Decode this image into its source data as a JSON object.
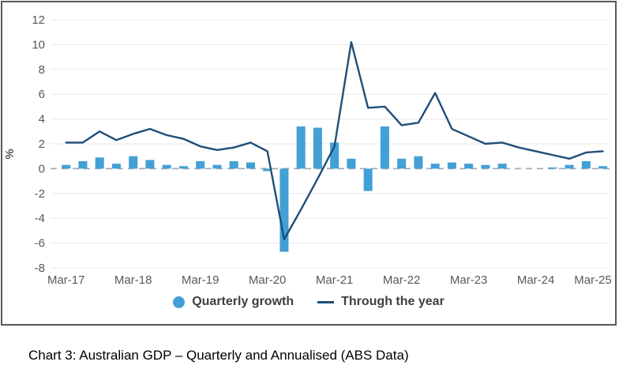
{
  "figure": {
    "caption": "Chart 3: Australian GDP – Quarterly and Annualised (ABS Data)"
  },
  "legend": {
    "items": [
      {
        "label": "Quarterly growth",
        "marker": "circle"
      },
      {
        "label": "Through the year",
        "marker": "line"
      }
    ]
  },
  "chart_data": {
    "type": "bar",
    "subtype": "bar+line combo",
    "title": "",
    "xlabel": "",
    "ylabel": "%",
    "ylim": [
      -8,
      12
    ],
    "ytick_step": 2,
    "grid": true,
    "zero_line": "dashed",
    "legend_position": "bottom",
    "x_tick_labels_shown": [
      "Mar-17",
      "Mar-18",
      "Mar-19",
      "Mar-20",
      "Mar-21",
      "Mar-22",
      "Mar-23",
      "Mar-24",
      "Mar-25"
    ],
    "categories": [
      "Mar-17",
      "Jun-17",
      "Sep-17",
      "Dec-17",
      "Mar-18",
      "Jun-18",
      "Sep-18",
      "Dec-18",
      "Mar-19",
      "Jun-19",
      "Sep-19",
      "Dec-19",
      "Mar-20",
      "Jun-20",
      "Sep-20",
      "Dec-20",
      "Mar-21",
      "Jun-21",
      "Sep-21",
      "Dec-21",
      "Mar-22",
      "Jun-22",
      "Sep-22",
      "Dec-22",
      "Mar-23",
      "Jun-23",
      "Sep-23",
      "Dec-23",
      "Mar-24",
      "Jun-24",
      "Sep-24",
      "Dec-24",
      "Mar-25"
    ],
    "series": [
      {
        "name": "Quarterly growth",
        "type": "bar",
        "color": "#42A0D5",
        "values": [
          0.3,
          0.6,
          0.9,
          0.4,
          1.0,
          0.7,
          0.3,
          0.2,
          0.6,
          0.3,
          0.6,
          0.5,
          -0.2,
          -6.7,
          3.4,
          3.3,
          2.1,
          0.8,
          -1.8,
          3.4,
          0.8,
          1.0,
          0.4,
          0.5,
          0.4,
          0.3,
          0.4,
          0.0,
          0.0,
          0.1,
          0.3,
          0.6,
          0.2
        ]
      },
      {
        "name": "Through the year",
        "type": "line",
        "color": "#1F4E79",
        "values": [
          2.1,
          2.1,
          3.0,
          2.3,
          2.8,
          3.2,
          2.7,
          2.4,
          1.8,
          1.5,
          1.7,
          2.1,
          1.4,
          -5.7,
          -3.3,
          -0.8,
          1.8,
          10.2,
          4.9,
          5.0,
          3.5,
          3.7,
          6.1,
          3.2,
          2.6,
          2.0,
          2.1,
          1.7,
          1.4,
          1.1,
          0.8,
          1.3,
          1.4
        ]
      }
    ],
    "colors": {
      "bar": "#42A0D5",
      "line": "#1F4E79",
      "grid": "#E8E8E8",
      "zero_line": "#ABABAB",
      "axis_text": "#595959",
      "frame_border": "#595959"
    }
  }
}
